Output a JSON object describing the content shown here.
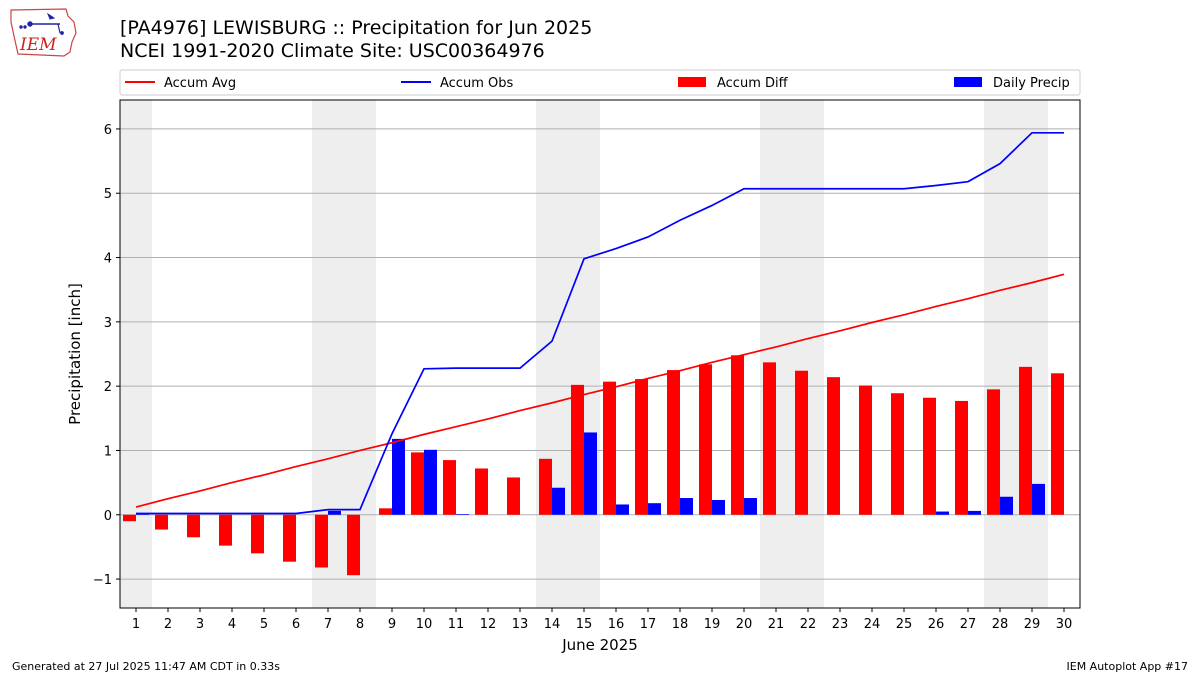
{
  "logo": {
    "text": "IEM"
  },
  "header": {
    "title_line1": "[PA4976] LEWISBURG :: Precipitation for Jun 2025",
    "title_line2": "NCEI 1991-2020 Climate Site: USC00364976"
  },
  "footer": {
    "left": "Generated at 27 Jul 2025 11:47 AM CDT in 0.33s",
    "right": "IEM Autoplot App #17"
  },
  "colors": {
    "avg": "#ff0000",
    "obs": "#0000ff",
    "diff": "#ff0000",
    "daily": "#0000ff",
    "weekend": "#eeeeee",
    "grid": "#b0b0b0"
  },
  "chart_data": {
    "type": "bar",
    "xlabel": "June 2025",
    "ylabel": "Precipitation [inch]",
    "ylim": [
      -1.45,
      6.45
    ],
    "yticks": [
      -1,
      0,
      1,
      2,
      3,
      4,
      5,
      6
    ],
    "ytick_labels": [
      "−1",
      "0",
      "1",
      "2",
      "3",
      "4",
      "5",
      "6"
    ],
    "grid": true,
    "legend_position": "top",
    "x": [
      1,
      2,
      3,
      4,
      5,
      6,
      7,
      8,
      9,
      10,
      11,
      12,
      13,
      14,
      15,
      16,
      17,
      18,
      19,
      20,
      21,
      22,
      23,
      24,
      25,
      26,
      27,
      28,
      29,
      30
    ],
    "shaded_days": [
      1,
      7,
      8,
      14,
      15,
      21,
      22,
      28,
      29
    ],
    "series": [
      {
        "name": "Accum Avg",
        "kind": "line",
        "values": [
          0.12,
          0.25,
          0.37,
          0.5,
          0.62,
          0.75,
          0.87,
          1.0,
          1.12,
          1.25,
          1.37,
          1.49,
          1.62,
          1.74,
          1.87,
          1.99,
          2.12,
          2.24,
          2.37,
          2.49,
          2.61,
          2.74,
          2.86,
          2.99,
          3.11,
          3.24,
          3.36,
          3.49,
          3.61,
          3.74
        ]
      },
      {
        "name": "Accum Obs",
        "kind": "line",
        "values": [
          0.02,
          0.02,
          0.02,
          0.02,
          0.02,
          0.02,
          0.08,
          0.08,
          1.26,
          2.27,
          2.28,
          2.28,
          2.28,
          2.7,
          3.98,
          4.14,
          4.32,
          4.58,
          4.81,
          5.07,
          5.07,
          5.07,
          5.07,
          5.07,
          5.07,
          5.12,
          5.18,
          5.46,
          5.94,
          5.94
        ]
      },
      {
        "name": "Accum Diff",
        "kind": "bar",
        "values": [
          -0.1,
          -0.23,
          -0.35,
          -0.48,
          -0.6,
          -0.73,
          -0.82,
          -0.94,
          0.1,
          0.97,
          0.85,
          0.72,
          0.58,
          0.87,
          2.02,
          2.07,
          2.11,
          2.25,
          2.34,
          2.48,
          2.37,
          2.24,
          2.14,
          2.01,
          1.89,
          1.82,
          1.77,
          1.95,
          2.3,
          2.2
        ]
      },
      {
        "name": "Daily Precip",
        "kind": "bar",
        "values": [
          0.02,
          0,
          0,
          0,
          0,
          0,
          0.06,
          0,
          1.18,
          1.01,
          0.01,
          0,
          0,
          0.42,
          1.28,
          0.16,
          0.18,
          0.26,
          0.23,
          0.26,
          0,
          0,
          0,
          0,
          0,
          0.05,
          0.06,
          0.28,
          0.48,
          0
        ]
      }
    ]
  }
}
